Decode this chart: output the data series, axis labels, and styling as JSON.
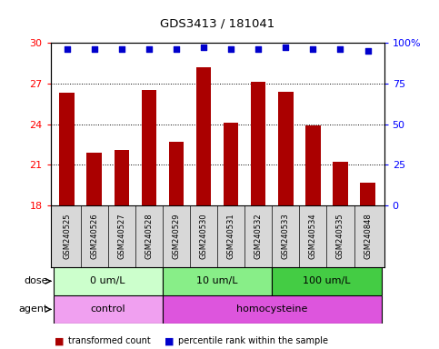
{
  "title": "GDS3413 / 181041",
  "samples": [
    "GSM240525",
    "GSM240526",
    "GSM240527",
    "GSM240528",
    "GSM240529",
    "GSM240530",
    "GSM240531",
    "GSM240532",
    "GSM240533",
    "GSM240534",
    "GSM240535",
    "GSM240848"
  ],
  "bar_values": [
    26.3,
    21.9,
    22.1,
    26.5,
    22.7,
    28.2,
    24.1,
    27.1,
    26.4,
    23.9,
    21.2,
    19.7
  ],
  "bar_color": "#aa0000",
  "dot_pct": [
    96,
    96,
    96,
    96,
    96,
    97,
    96,
    96,
    97,
    96,
    96,
    95
  ],
  "dot_color": "#0000cc",
  "ylim_left": [
    18,
    30
  ],
  "yticks_left": [
    18,
    21,
    24,
    27,
    30
  ],
  "ylim_right": [
    0,
    100
  ],
  "yticks_right": [
    0,
    25,
    50,
    75,
    100
  ],
  "ytick_labels_right": [
    "0",
    "25",
    "50",
    "75",
    "100%"
  ],
  "grid_values": [
    21,
    24,
    27
  ],
  "dose_groups": [
    {
      "label": "0 um/L",
      "start": 0,
      "end": 4,
      "color": "#ccffcc"
    },
    {
      "label": "10 um/L",
      "start": 4,
      "end": 8,
      "color": "#88ee88"
    },
    {
      "label": "100 um/L",
      "start": 8,
      "end": 12,
      "color": "#44cc44"
    }
  ],
  "agent_groups": [
    {
      "label": "control",
      "start": 0,
      "end": 4,
      "color": "#f0a0f0"
    },
    {
      "label": "homocysteine",
      "start": 4,
      "end": 12,
      "color": "#dd55dd"
    }
  ],
  "legend_items": [
    {
      "color": "#aa0000",
      "label": "transformed count"
    },
    {
      "color": "#0000cc",
      "label": "percentile rank within the sample"
    }
  ],
  "dose_label": "dose",
  "agent_label": "agent",
  "sample_bg": "#d8d8d8",
  "bar_width": 0.55
}
